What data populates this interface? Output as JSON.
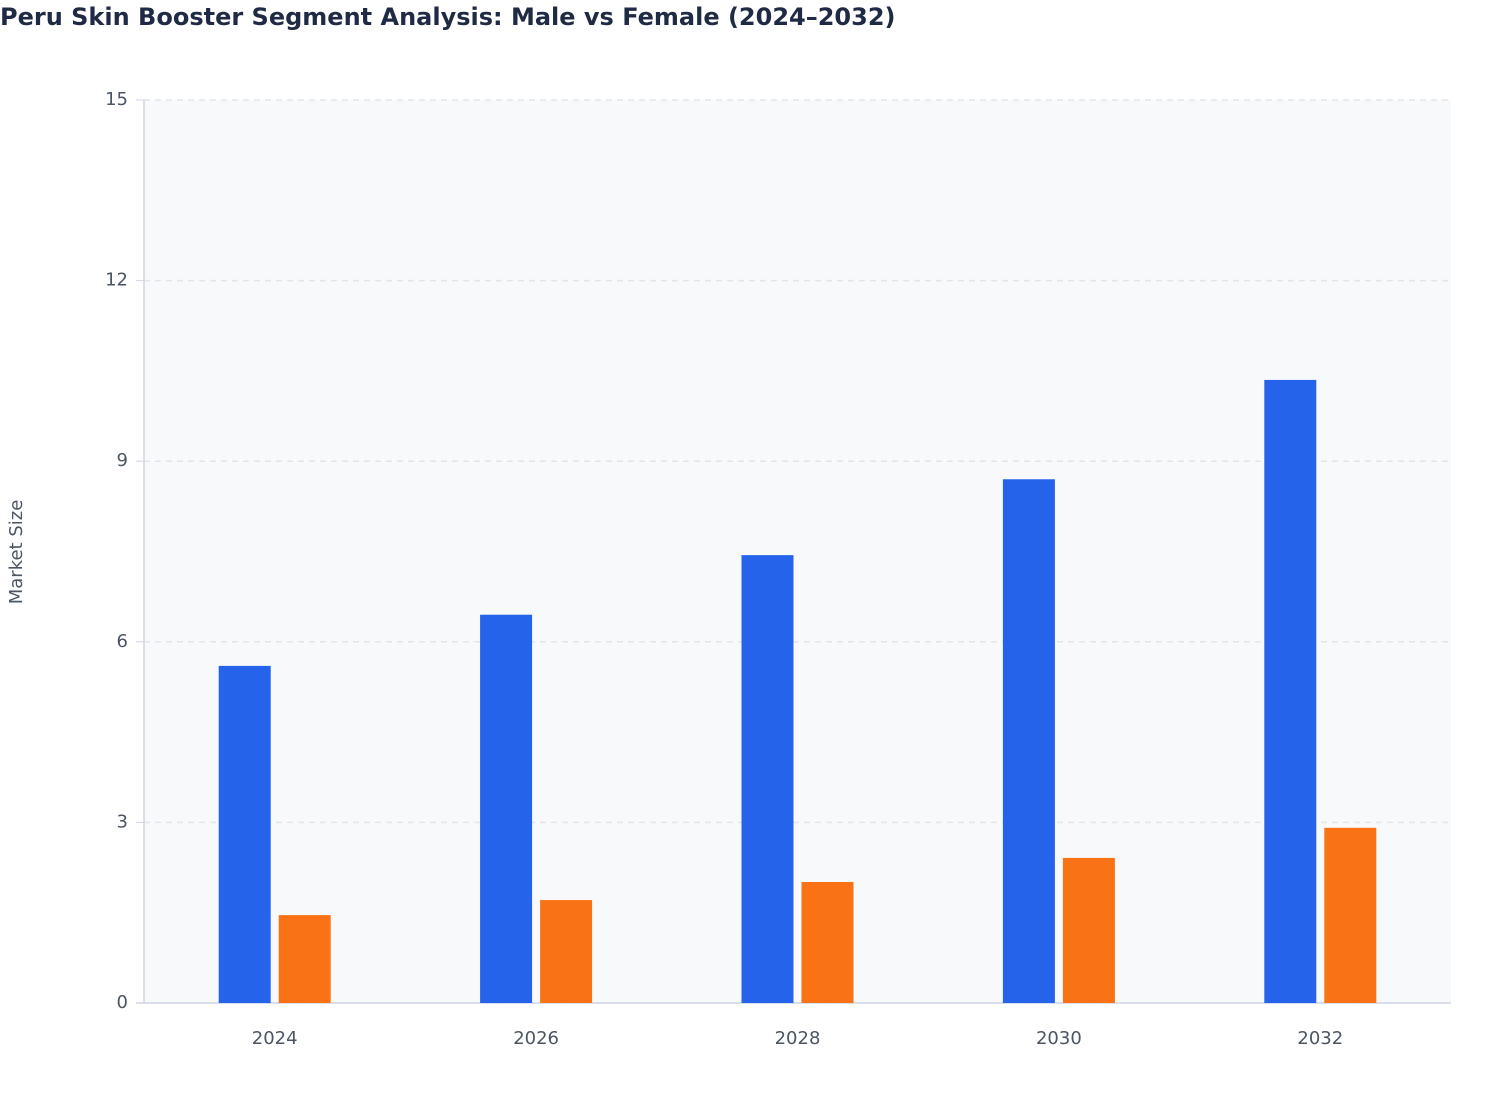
{
  "chart_data": {
    "type": "bar",
    "title": "Peru Skin Booster Segment Analysis: Male vs Female (2024–2032)",
    "y_label": "Market Size",
    "categories": [
      "2024",
      "2026",
      "2028",
      "2030",
      "2032"
    ],
    "series": [
      {
        "color": "#2563eb",
        "values": [
          5.6,
          6.45,
          7.44,
          8.7,
          10.35
        ]
      },
      {
        "color": "#f97316",
        "values": [
          1.46,
          1.71,
          2.01,
          2.41,
          2.91
        ]
      }
    ],
    "ylim": [
      0,
      15
    ],
    "yticks": [
      0,
      3,
      6,
      9,
      12,
      15
    ],
    "grid": true
  }
}
